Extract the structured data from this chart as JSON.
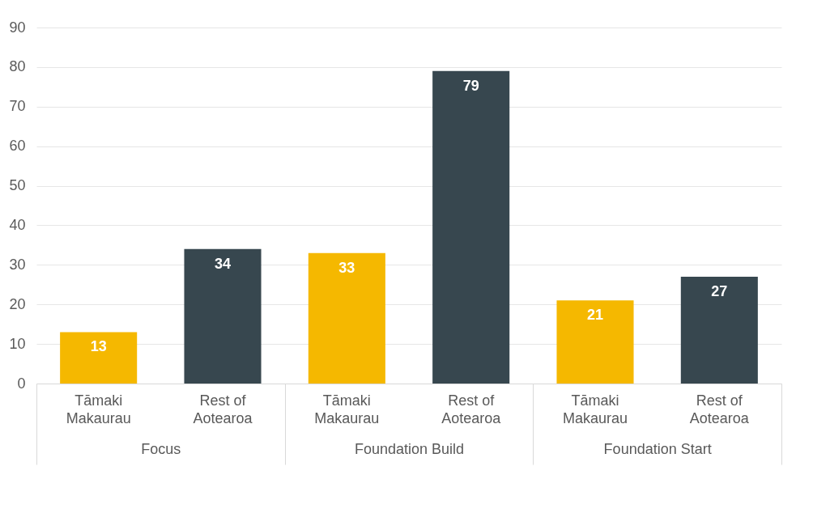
{
  "chart_data": {
    "type": "bar",
    "categories": [
      "Focus",
      "Foundation Build",
      "Foundation Start"
    ],
    "series": [
      {
        "name": "Tāmaki Makaurau",
        "color": "#f5b800",
        "values": [
          13,
          33,
          21
        ]
      },
      {
        "name": "Rest of Aotearoa",
        "color": "#37474f",
        "values": [
          34,
          79,
          27
        ]
      }
    ],
    "ylim": [
      0,
      90
    ],
    "yticks": [
      0,
      10,
      20,
      30,
      40,
      50,
      60,
      70,
      80,
      90
    ],
    "grid": "y",
    "data_labels": true,
    "legend": false
  }
}
